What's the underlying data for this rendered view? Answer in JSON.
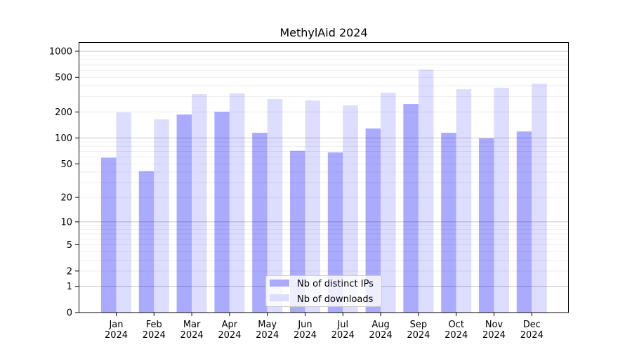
{
  "chart_data": {
    "type": "bar",
    "title": "MethylAid 2024",
    "xlabel": "",
    "ylabel": "",
    "yscale": "symlog (log10(y+1))",
    "ylim": [
      0,
      1000
    ],
    "yticks": [
      0,
      1,
      2,
      5,
      10,
      20,
      50,
      100,
      200,
      500,
      1000
    ],
    "categories": [
      "Jan\n2024",
      "Feb\n2024",
      "Mar\n2024",
      "Apr\n2024",
      "May\n2024",
      "Jun\n2024",
      "Jul\n2024",
      "Aug\n2024",
      "Sep\n2024",
      "Oct\n2024",
      "Nov\n2024",
      "Dec\n2024"
    ],
    "series": [
      {
        "name": "Nb of distinct IPs",
        "color": "#aaaaff",
        "values": [
          59,
          41,
          187,
          201,
          115,
          71,
          68,
          129,
          247,
          115,
          99,
          119
        ]
      },
      {
        "name": "Nb of downloads",
        "color": "#ddddff",
        "values": [
          198,
          164,
          321,
          327,
          282,
          272,
          238,
          334,
          616,
          366,
          380,
          425
        ]
      }
    ],
    "legend_position": "bottom-center",
    "grid": true
  }
}
